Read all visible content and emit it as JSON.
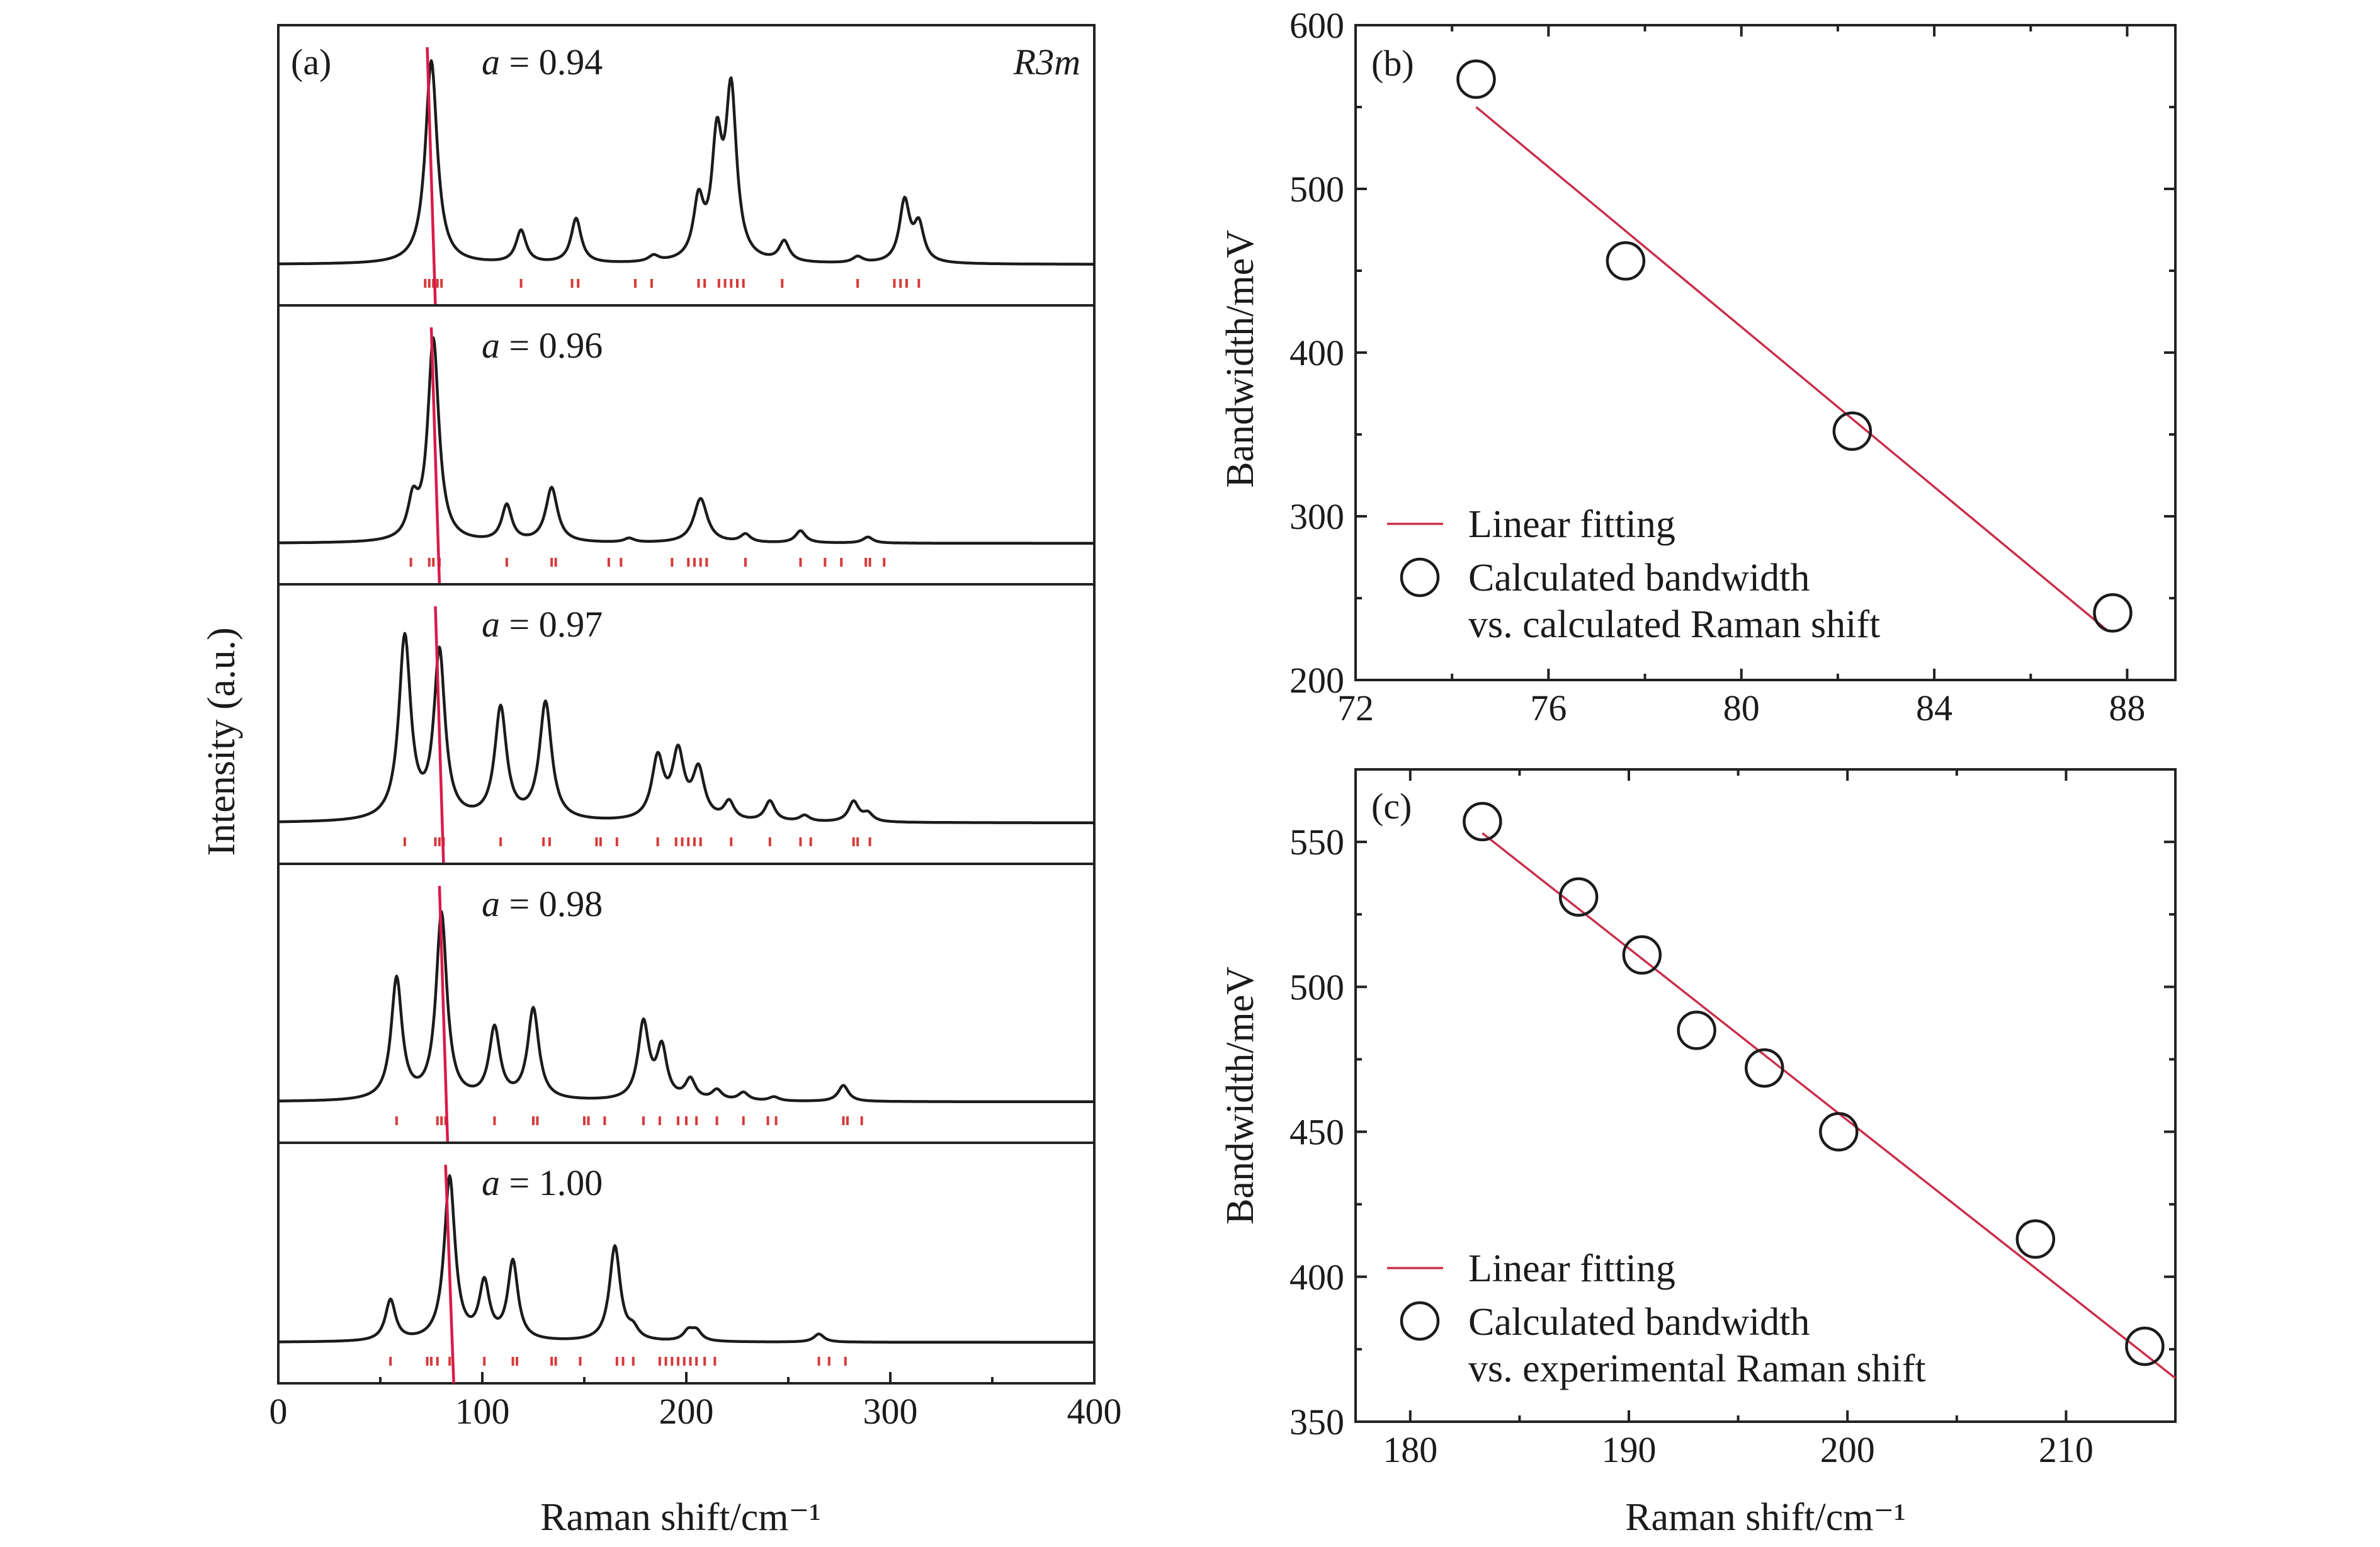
{
  "chart_data": [
    {
      "panel": "(a)",
      "type": "line",
      "annotation": "R3m",
      "xlabel": "Raman shift/cm⁻¹",
      "ylabel": "Intensity (a.u.)",
      "xlim": [
        0,
        400
      ],
      "xticks": [
        "0",
        "100",
        "200",
        "300",
        "400"
      ],
      "series": [
        {
          "name": "a = 0.94",
          "a_symbol": "a",
          "a_value": "0.94",
          "main_peak": 75,
          "peaks": [
            [
              75,
              1.0,
              3.5
            ],
            [
              119,
              0.16,
              3
            ],
            [
              146,
              0.22,
              3
            ],
            [
              184,
              0.03,
              3
            ],
            [
              206,
              0.28,
              3
            ],
            [
              215,
              0.55,
              3
            ],
            [
              222,
              0.82,
              3.2
            ],
            [
              248,
              0.1,
              3
            ],
            [
              284,
              0.03,
              3
            ],
            [
              307,
              0.3,
              3
            ],
            [
              314,
              0.18,
              3
            ]
          ],
          "sticks": [
            72,
            74,
            76,
            78,
            80,
            119,
            144,
            147,
            175,
            183,
            206,
            209,
            216,
            219,
            222,
            225,
            228,
            247,
            284,
            302,
            305,
            308,
            314
          ]
        },
        {
          "name": "a = 0.96",
          "a_symbol": "a",
          "a_value": "0.96",
          "main_peak": 77,
          "peaks": [
            [
              66,
              0.18,
              3
            ],
            [
              76,
              1.0,
              3.3
            ],
            [
              112,
              0.18,
              3
            ],
            [
              134,
              0.27,
              3.5
            ],
            [
              172,
              0.02,
              3
            ],
            [
              207,
              0.22,
              4
            ],
            [
              229,
              0.04,
              3
            ],
            [
              256,
              0.06,
              3
            ],
            [
              289,
              0.03,
              3
            ]
          ],
          "sticks": [
            65,
            74,
            76,
            79,
            112,
            134,
            136,
            162,
            168,
            193,
            201,
            204,
            207,
            210,
            229,
            256,
            268,
            276,
            288,
            290,
            297
          ]
        },
        {
          "name": "a = 0.97",
          "a_symbol": "a",
          "a_value": "0.97",
          "main_peak": 79,
          "peaks": [
            [
              62,
              0.9,
              3.5
            ],
            [
              79,
              0.82,
              3.3
            ],
            [
              109,
              0.55,
              3.5
            ],
            [
              131,
              0.58,
              3.6
            ],
            [
              186,
              0.3,
              3.5
            ],
            [
              196,
              0.32,
              3.5
            ],
            [
              206,
              0.24,
              3.5
            ],
            [
              221,
              0.09,
              3
            ],
            [
              241,
              0.1,
              3
            ],
            [
              258,
              0.03,
              3
            ],
            [
              282,
              0.1,
              3
            ],
            [
              289,
              0.04,
              3
            ]
          ],
          "sticks": [
            62,
            77,
            79,
            81,
            109,
            130,
            133,
            156,
            158,
            166,
            186,
            195,
            198,
            201,
            204,
            207,
            222,
            241,
            256,
            261,
            282,
            284,
            290
          ]
        },
        {
          "name": "a = 0.98",
          "a_symbol": "a",
          "a_value": "0.98",
          "main_peak": 81,
          "peaks": [
            [
              58,
              0.6,
              3.2
            ],
            [
              80,
              0.92,
              3.2
            ],
            [
              106,
              0.35,
              3.2
            ],
            [
              125,
              0.45,
              3.3
            ],
            [
              179,
              0.38,
              3.2
            ],
            [
              188,
              0.25,
              3
            ],
            [
              202,
              0.1,
              3
            ],
            [
              215,
              0.05,
              3
            ],
            [
              228,
              0.04,
              3
            ],
            [
              243,
              0.02,
              3
            ],
            [
              277,
              0.08,
              3
            ]
          ],
          "sticks": [
            58,
            78,
            80,
            82,
            106,
            125,
            127,
            150,
            152,
            160,
            179,
            187,
            196,
            200,
            205,
            215,
            228,
            240,
            244,
            277,
            279,
            286
          ]
        },
        {
          "name": "a = 1.00",
          "a_symbol": "a",
          "a_value": "1.00",
          "main_peak": 84,
          "peaks": [
            [
              55,
              0.25,
              3
            ],
            [
              84,
              1.0,
              3.2
            ],
            [
              101,
              0.34,
              3
            ],
            [
              115,
              0.48,
              3
            ],
            [
              165,
              0.58,
              3.2
            ],
            [
              174,
              0.06,
              3
            ],
            [
              201,
              0.06,
              3
            ],
            [
              205,
              0.06,
              3
            ],
            [
              265,
              0.05,
              3
            ]
          ],
          "sticks": [
            55,
            73,
            75,
            78,
            84,
            101,
            115,
            117,
            134,
            136,
            148,
            166,
            169,
            174,
            187,
            190,
            193,
            196,
            199,
            202,
            205,
            209,
            214,
            265,
            270,
            278
          ]
        }
      ]
    },
    {
      "panel": "(b)",
      "type": "scatter",
      "xlabel": "",
      "ylabel": "Bandwidth/meV",
      "xlim": [
        72,
        89
      ],
      "ylim": [
        200,
        600
      ],
      "xticks": [
        "72",
        "76",
        "80",
        "84",
        "88"
      ],
      "yticks": [
        "200",
        "300",
        "400",
        "500",
        "600"
      ],
      "points": [
        [
          74.5,
          567
        ],
        [
          77.6,
          456
        ],
        [
          82.3,
          352
        ],
        [
          87.7,
          241
        ]
      ],
      "fit": [
        [
          74.5,
          550
        ],
        [
          87.6,
          230
        ]
      ],
      "legend_fit": "Linear fitting",
      "legend_points": [
        "Calculated bandwidth",
        "vs. calculated Raman shift"
      ]
    },
    {
      "panel": "(c)",
      "type": "scatter",
      "xlabel": "Raman shift/cm⁻¹",
      "ylabel": "Bandwidth/meV",
      "xlim": [
        177.5,
        215
      ],
      "ylim": [
        350,
        575
      ],
      "xticks": [
        "180",
        "190",
        "200",
        "210"
      ],
      "yticks": [
        "350",
        "400",
        "450",
        "500",
        "550"
      ],
      "points": [
        [
          183.3,
          557
        ],
        [
          187.7,
          531
        ],
        [
          190.6,
          511
        ],
        [
          193.1,
          485
        ],
        [
          196.2,
          472
        ],
        [
          199.6,
          450
        ],
        [
          208.6,
          413
        ],
        [
          213.6,
          376
        ]
      ],
      "fit": [
        [
          183.3,
          553
        ],
        [
          215,
          365
        ]
      ],
      "legend_fit": "Linear fitting",
      "legend_points": [
        "Calculated bandwidth",
        "vs. experimental Raman shift"
      ]
    }
  ]
}
